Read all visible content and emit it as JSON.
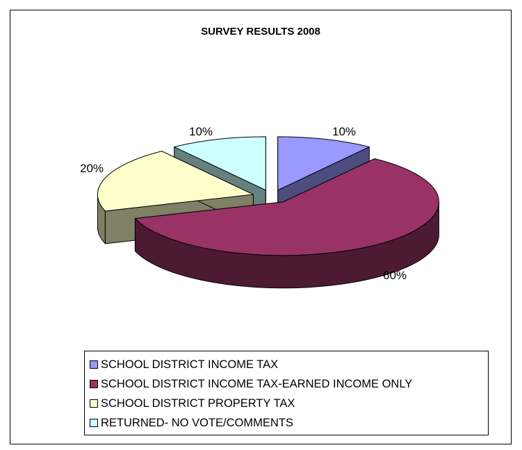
{
  "chart_data": {
    "type": "pie",
    "title": "SURVEY RESULTS 2008",
    "categories": [
      "SCHOOL DISTRICT INCOME TAX",
      "SCHOOL DISTRICT INCOME TAX-EARNED INCOME ONLY",
      "SCHOOL DISTRICT PROPERTY TAX",
      "RETURNED- NO VOTE/COMMENTS"
    ],
    "values": [
      10,
      60,
      20,
      10
    ],
    "data_labels": [
      "10%",
      "60%",
      "20%",
      "10%"
    ],
    "colors": [
      "#9999FF",
      "#993366",
      "#FFFFCC",
      "#CCFFFF"
    ],
    "side_colors": [
      "#4D4D80",
      "#4D1A33",
      "#808066",
      "#668080"
    ],
    "style": "3d-exploded",
    "legend_position": "bottom"
  }
}
